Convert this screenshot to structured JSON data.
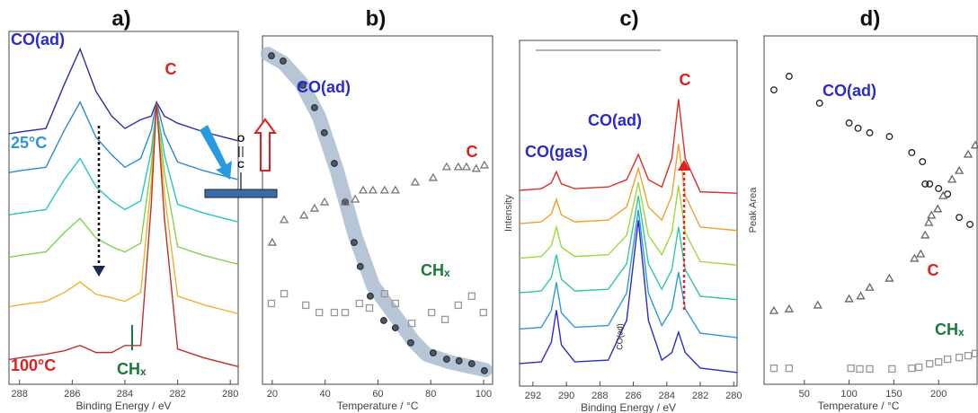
{
  "chart_data": [
    {
      "type": "line",
      "title": "a)",
      "xlabel": "Binding Energy / eV",
      "xlim": [
        288.4,
        279.7
      ],
      "ylim": [
        0,
        100
      ],
      "xticks": [
        288,
        286,
        284,
        282,
        280
      ],
      "x": [
        288.4,
        288,
        287,
        286.3,
        285.7,
        285.1,
        284.5,
        284,
        283.4,
        283,
        282.8,
        282.5,
        282,
        281,
        279.7
      ],
      "series": [
        {
          "color": "#2b2fa8",
          "values": [
            71,
            71.5,
            72.5,
            85,
            95,
            83,
            76,
            72.5,
            75,
            76,
            80,
            76,
            74,
            71.5,
            69
          ]
        },
        {
          "color": "#2a8ad6",
          "values": [
            60,
            60.5,
            61.5,
            72,
            80,
            70,
            65,
            61.5,
            64,
            72,
            80,
            71,
            63,
            60.5,
            58
          ]
        },
        {
          "color": "#25c7c0",
          "values": [
            48,
            48.5,
            49.5,
            58,
            64,
            56,
            52,
            49.5,
            52,
            66,
            79,
            65,
            51,
            48.5,
            46
          ]
        },
        {
          "color": "#7fd34a",
          "values": [
            36,
            36.5,
            37.5,
            43,
            47,
            41.5,
            39,
            37.5,
            40,
            62,
            79,
            60,
            39,
            36.5,
            34
          ]
        },
        {
          "color": "#f0b030",
          "values": [
            22,
            22.5,
            23.5,
            26,
            29,
            25.5,
            24.5,
            23.5,
            26,
            57,
            80,
            54,
            25,
            22.5,
            20
          ]
        },
        {
          "color": "#c0302a",
          "values": [
            7,
            7.5,
            8.5,
            9.5,
            11,
            9,
            9,
            11,
            11,
            51,
            80,
            47,
            10,
            7.5,
            5
          ]
        }
      ],
      "annotations": [
        {
          "text": "CO(ad)",
          "color": "#2a2ad0"
        },
        {
          "text": "C",
          "color": "#e02020"
        },
        {
          "text": "25°C",
          "color": "#2a9ad6"
        },
        {
          "text": "100°C",
          "color": "#e02020"
        },
        {
          "text": "CHₓ",
          "color": "#1a7a3a"
        }
      ]
    },
    {
      "type": "scatter",
      "title": "b)",
      "xlabel": "Temperature / °C",
      "xlim": [
        16.3,
        103.4
      ],
      "ylim": [
        0,
        100
      ],
      "xticks": [
        20,
        40,
        60,
        80,
        100
      ],
      "series": [
        {
          "style": "band",
          "color": "#a9bccf",
          "x": [
            18.3,
            24.1,
            30.9,
            37.7,
            44.5,
            51.3,
            58.1,
            66.6,
            73.4,
            78.5,
            87.0,
            100.6
          ],
          "values": [
            94.8,
            92.3,
            86.6,
            76.8,
            61.3,
            42.8,
            28.4,
            19.6,
            12.4,
            8.5,
            6.4,
            4.1
          ]
        },
        {
          "marker": "circle",
          "color": "#333",
          "fill": "#4a5a70",
          "x": [
            19.7,
            24.1,
            31.6,
            36.0,
            39.7,
            43.5,
            47.6,
            51.0,
            53.3,
            57.1,
            62.2,
            66.6,
            72.4,
            80.9,
            86.0,
            90.7,
            95.5,
            100.3
          ],
          "values": [
            94.3,
            92.8,
            85.8,
            79.4,
            72.2,
            63.4,
            52.3,
            40.7,
            33.8,
            25.3,
            18.3,
            16.2,
            11.9,
            9.0,
            7.2,
            6.7,
            5.9,
            3.9
          ]
        },
        {
          "marker": "triangle",
          "color": "#777",
          "x": [
            20.0,
            24.5,
            32.0,
            36.0,
            39.8,
            47.6,
            51.4,
            54.4,
            58.1,
            62.5,
            66.6,
            74.1,
            80.9,
            86.0,
            90.4,
            93.5,
            97.2,
            100.3
          ],
          "values": [
            40.7,
            47.2,
            48.5,
            50.5,
            52.3,
            52.3,
            53.1,
            55.7,
            55.7,
            55.7,
            55.7,
            58.0,
            59.3,
            62.4,
            62.4,
            62.4,
            61.9,
            62.9
          ]
        },
        {
          "marker": "square",
          "color": "#999",
          "x": [
            19.7,
            24.5,
            32.7,
            37.8,
            43.5,
            47.6,
            53.0,
            56.8,
            62.5,
            66.6,
            72.8,
            80.3,
            85.4,
            90.4,
            95.5,
            99.9
          ],
          "values": [
            23.2,
            26.0,
            22.7,
            20.6,
            20.6,
            20.6,
            23.2,
            21.9,
            26.0,
            23.2,
            17.5,
            20.6,
            18.6,
            22.7,
            25.3,
            20.6
          ]
        }
      ],
      "annotations": [
        {
          "text": "CO(ad)",
          "color": "#2a2ad0"
        },
        {
          "text": "C",
          "color": "#e02020"
        },
        {
          "text": "CHₓ",
          "color": "#1a7a3a"
        }
      ],
      "inset": {
        "top": "O",
        "bottom": "C"
      }
    },
    {
      "type": "line",
      "title": "c)",
      "xlabel": "Binding Energy / eV",
      "ylabel": "Intensity",
      "xlim": [
        292.8,
        279.8
      ],
      "ylim": [
        0,
        100
      ],
      "xticks": [
        292,
        290,
        288,
        286,
        284,
        282,
        280
      ],
      "x": [
        292.8,
        291.5,
        290.9,
        290.6,
        290.3,
        289.5,
        287.5,
        286.4,
        285.7,
        285.1,
        284.3,
        283.7,
        283.3,
        282.9,
        282,
        279.8
      ],
      "series": [
        {
          "color": "#2a2ad0",
          "values": [
            6.5,
            7,
            12.7,
            22,
            11.9,
            7,
            7.5,
            19,
            48,
            19,
            7.5,
            9.7,
            15.6,
            9.7,
            5.2,
            3.9
          ]
        },
        {
          "color": "#2b9ad8",
          "values": [
            16.5,
            17,
            21.9,
            30,
            21.2,
            17,
            17.5,
            26.9,
            51,
            26.9,
            17.5,
            22.3,
            33,
            22.3,
            15.3,
            14
          ]
        },
        {
          "color": "#30c8a0",
          "values": [
            27,
            27.5,
            31.4,
            38,
            30.9,
            27.5,
            28,
            35.4,
            55,
            35.4,
            28,
            33.7,
            46,
            33.7,
            26,
            25
          ]
        },
        {
          "color": "#a0d83a",
          "values": [
            37,
            37.5,
            40.6,
            46,
            40.2,
            37.5,
            38,
            43.6,
            59,
            43.6,
            38,
            44.4,
            58,
            44.4,
            36,
            35
          ]
        },
        {
          "color": "#f0a030",
          "values": [
            47,
            47.5,
            49.8,
            54,
            49.5,
            47.5,
            48,
            51.8,
            63,
            51.8,
            48,
            55.1,
            70,
            55.1,
            46,
            45
          ]
        },
        {
          "color": "#d83028",
          "values": [
            56.6,
            57.1,
            58.8,
            62,
            58.5,
            57.1,
            57.6,
            59.7,
            67,
            59.7,
            57.6,
            65.8,
            83,
            65.8,
            56.2,
            55.8
          ]
        }
      ],
      "annotations": [
        {
          "text": "CO(gas)",
          "color": "#2a2ad0"
        },
        {
          "text": "CO(ad)",
          "color": "#2a2ad0"
        },
        {
          "text": "C",
          "color": "#e02020"
        },
        {
          "text": "CO(ad)",
          "color": "#222"
        }
      ]
    },
    {
      "type": "scatter",
      "title": "d)",
      "xlabel": "Temperature / °C",
      "ylabel": "Peak Area",
      "xlim": [
        5,
        243
      ],
      "ylim": [
        0,
        100
      ],
      "xticks": [
        50,
        100,
        150,
        200
      ],
      "series": [
        {
          "marker": "circle",
          "color": "#222",
          "fill": "none",
          "x": [
            16,
            33,
            67,
            100,
            110,
            123,
            145,
            170,
            182,
            185,
            190,
            200,
            210,
            223,
            235
          ],
          "values": [
            84.5,
            88.4,
            80.7,
            75.0,
            73.5,
            72.2,
            71.1,
            66.5,
            63.9,
            57.5,
            57.5,
            56.2,
            54.6,
            47.9,
            45.9
          ]
        },
        {
          "marker": "triangle",
          "color": "#666",
          "x": [
            16,
            33,
            65,
            100,
            113,
            123,
            145,
            173,
            180,
            185,
            189,
            192,
            199,
            205,
            215,
            223,
            233,
            241
          ],
          "values": [
            21.1,
            21.6,
            22.7,
            24.5,
            25.3,
            27.8,
            30.4,
            36.1,
            37.4,
            42.8,
            46.4,
            48.5,
            50.3,
            54.1,
            58.8,
            61.3,
            66.0,
            68.6
          ]
        },
        {
          "marker": "square",
          "color": "#999",
          "x": [
            16,
            33,
            102,
            112,
            123,
            148,
            170,
            178,
            190,
            200,
            210,
            223,
            233,
            241
          ],
          "values": [
            4.6,
            4.6,
            4.6,
            4.4,
            4.4,
            4.4,
            4.6,
            4.9,
            5.9,
            6.4,
            7.2,
            7.7,
            8.2,
            8.8
          ]
        }
      ],
      "annotations": [
        {
          "text": "CO(ad)",
          "color": "#2a2ad0"
        },
        {
          "text": "C",
          "color": "#e02020"
        },
        {
          "text": "CHₓ",
          "color": "#1a7a3a"
        }
      ]
    }
  ]
}
